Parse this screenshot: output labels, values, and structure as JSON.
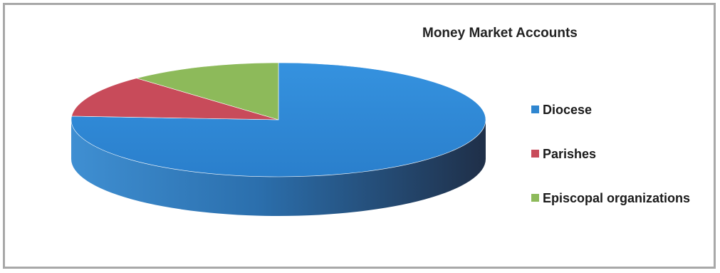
{
  "chart_data": {
    "type": "pie",
    "title": "Money Market Accounts",
    "categories": [
      "Diocese",
      "Parishes",
      "Episcopal organizations"
    ],
    "values": [
      76,
      12,
      12
    ],
    "colors": [
      "#2f86d0",
      "#c84b5a",
      "#8dba5a"
    ],
    "legend_position": "right",
    "style": "3d"
  }
}
